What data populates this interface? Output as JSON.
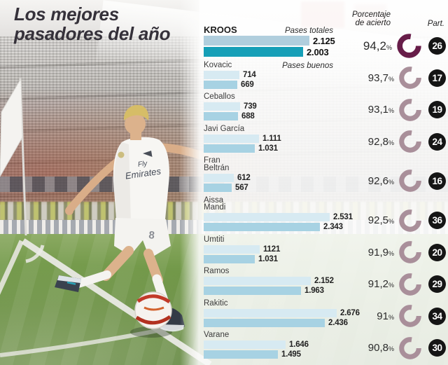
{
  "title": {
    "line1": "Los mejores",
    "line2": "pasadores del año"
  },
  "headers": {
    "accuracy_line1": "Porcentaje",
    "accuracy_line2": "de acierto",
    "participation": "Part.",
    "percent_sign": "%"
  },
  "legend": {
    "totals": "Pases totales",
    "good": "Pases buenos"
  },
  "colors": {
    "bar_total_default": "#d7eaf2",
    "bar_good_default": "#a7d2e3",
    "bar_total_highlight": "#b0cedd",
    "bar_good_highlight": "#169fb7",
    "donut_highlight": "#671d49",
    "donut_default": "#a98f9a",
    "badge_bg": "#151515",
    "badge_text": "#ffffff"
  },
  "chart_data": {
    "type": "bar",
    "orientation": "horizontal",
    "title": "Los mejores pasadores del año",
    "series": [
      "Pases totales",
      "Pases buenos"
    ],
    "max_value": 2676,
    "players": [
      {
        "name": "KROOS",
        "total_label": "2.125",
        "good_label": "2.003",
        "total": 2125,
        "good": 2003,
        "accuracy_label": "94,2",
        "accuracy": 94.2,
        "participation": 26,
        "highlight": true
      },
      {
        "name": "Kovacic",
        "total_label": "714",
        "good_label": "669",
        "total": 714,
        "good": 669,
        "accuracy_label": "93,7",
        "accuracy": 93.7,
        "participation": 17,
        "highlight": false
      },
      {
        "name": "Ceballos",
        "total_label": "739",
        "good_label": "688",
        "total": 739,
        "good": 688,
        "accuracy_label": "93,1",
        "accuracy": 93.1,
        "participation": 19,
        "highlight": false
      },
      {
        "name": "Javi García",
        "total_label": "1.111",
        "good_label": "1.031",
        "total": 1111,
        "good": 1031,
        "accuracy_label": "92,8",
        "accuracy": 92.8,
        "participation": 24,
        "highlight": false
      },
      {
        "name": "Fran Beltrán",
        "total_label": "612",
        "good_label": "567",
        "total": 612,
        "good": 567,
        "accuracy_label": "92,6",
        "accuracy": 92.6,
        "participation": 16,
        "highlight": false
      },
      {
        "name": "Aissa Mandi",
        "total_label": "2.531",
        "good_label": "2.343",
        "total": 2531,
        "good": 2343,
        "accuracy_label": "92,5",
        "accuracy": 92.5,
        "participation": 36,
        "highlight": false
      },
      {
        "name": "Umtiti",
        "total_label": "1121",
        "good_label": "1.031",
        "total": 1121,
        "good": 1031,
        "accuracy_label": "91,9",
        "accuracy": 91.9,
        "participation": 20,
        "highlight": false
      },
      {
        "name": "Ramos",
        "total_label": "2.152",
        "good_label": "1.963",
        "total": 2152,
        "good": 1963,
        "accuracy_label": "91,2",
        "accuracy": 91.2,
        "participation": 29,
        "highlight": false
      },
      {
        "name": "Rakitic",
        "total_label": "2.676",
        "good_label": "2.436",
        "total": 2676,
        "good": 2436,
        "accuracy_label": "91",
        "accuracy": 91.0,
        "participation": 34,
        "highlight": false
      },
      {
        "name": "Varane",
        "total_label": "1.646",
        "good_label": "1.495",
        "total": 1646,
        "good": 1495,
        "accuracy_label": "90,8",
        "accuracy": 90.8,
        "participation": 30,
        "highlight": false
      }
    ]
  },
  "photo": {
    "shirt_line1": "Fly",
    "shirt_line2": "Emirates",
    "shorts_number": "8"
  }
}
